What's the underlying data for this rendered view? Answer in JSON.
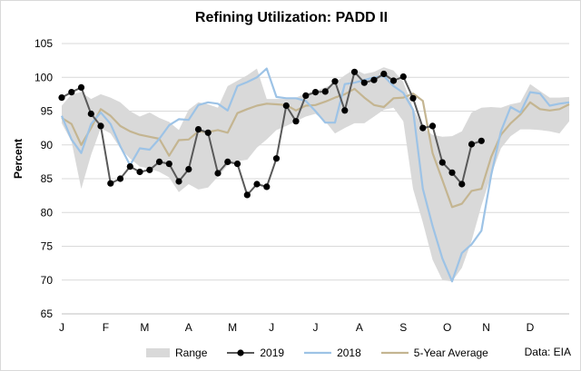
{
  "chart_data": {
    "type": "line",
    "title": "Refining Utilization: PADD II",
    "ylabel": "Percent",
    "xlabel": "",
    "ylim": [
      65,
      105
    ],
    "yticks": [
      65,
      70,
      75,
      80,
      85,
      90,
      95,
      100,
      105
    ],
    "xlim": [
      1,
      53
    ],
    "x_ticks": [
      {
        "label": "J",
        "week": 1
      },
      {
        "label": "F",
        "week": 5.5
      },
      {
        "label": "M",
        "week": 9.5
      },
      {
        "label": "A",
        "week": 14
      },
      {
        "label": "M",
        "week": 18.5
      },
      {
        "label": "J",
        "week": 22.5
      },
      {
        "label": "J",
        "week": 27
      },
      {
        "label": "A",
        "week": 31.5
      },
      {
        "label": "S",
        "week": 36
      },
      {
        "label": "O",
        "week": 40.5
      },
      {
        "label": "N",
        "week": 44.5
      },
      {
        "label": "D",
        "week": 49
      }
    ],
    "grid": "horizontal",
    "legend_position": "bottom",
    "range": {
      "name": "Range",
      "color": "#d9d9d9",
      "upper": [
        95.8,
        97.5,
        97.8,
        96.8,
        97.5,
        97.0,
        96.3,
        95.0,
        94.2,
        94.8,
        94.0,
        93.4,
        92.2,
        95.2,
        96.3,
        96.0,
        95.5,
        98.7,
        99.5,
        100.3,
        101.3,
        96.8,
        96.8,
        96.8,
        97.0,
        97.6,
        98.0,
        98.5,
        99.2,
        100.3,
        101.2,
        100.5,
        100.8,
        101.5,
        101.0,
        99.3,
        95.5,
        92.5,
        91.5,
        91.2,
        91.3,
        92.0,
        94.8,
        95.5,
        95.6,
        95.5,
        96.0,
        96.3,
        99.0,
        98.0,
        97.0,
        97.0,
        97.1
      ],
      "lower": [
        93.2,
        90.5,
        83.5,
        88.5,
        92.5,
        91.7,
        89.5,
        88.0,
        86.8,
        86.5,
        86.0,
        85.2,
        83.0,
        84.2,
        83.4,
        83.7,
        85.3,
        87.0,
        87.6,
        87.8,
        89.6,
        90.8,
        92.2,
        92.8,
        93.5,
        94.2,
        94.6,
        93.5,
        91.7,
        92.5,
        93.2,
        93.2,
        94.2,
        95.2,
        95.5,
        93.5,
        83.5,
        78.5,
        73.0,
        70.0,
        69.8,
        71.8,
        75.8,
        81.0,
        85.5,
        89.5,
        91.3,
        92.3,
        92.3,
        92.2,
        92.0,
        91.7,
        93.5
      ]
    },
    "series": [
      {
        "name": "2019",
        "color": "#595959",
        "marker": "circle",
        "values": [
          97.0,
          97.8,
          98.5,
          94.6,
          92.8,
          84.3,
          85.0,
          86.8,
          86.0,
          86.3,
          87.5,
          87.2,
          84.6,
          86.4,
          92.3,
          91.8,
          85.8,
          87.5,
          87.2,
          82.6,
          84.2,
          83.8,
          88.0,
          95.8,
          93.5,
          97.3,
          97.8,
          97.9,
          99.4,
          95.1,
          100.8,
          99.2,
          99.6,
          100.5,
          99.5,
          100.1,
          96.9,
          92.5,
          92.8,
          87.4,
          85.9,
          84.2,
          90.1,
          90.6,
          null,
          null,
          null,
          null,
          null,
          null,
          null,
          null,
          null
        ]
      },
      {
        "name": "2018",
        "color": "#9dc3e6",
        "marker": "none",
        "values": [
          94.3,
          90.8,
          88.8,
          93.1,
          94.8,
          93.1,
          89.8,
          87.0,
          89.5,
          89.3,
          90.9,
          92.9,
          93.8,
          93.7,
          95.9,
          96.3,
          96.1,
          95.1,
          98.7,
          99.3,
          100.0,
          101.3,
          97.1,
          96.9,
          96.9,
          96.5,
          95.0,
          93.3,
          93.3,
          99.0,
          99.2,
          99.6,
          100.0,
          100.2,
          98.7,
          97.7,
          95.2,
          83.5,
          78.0,
          73.2,
          69.8,
          74.0,
          75.3,
          77.3,
          85.5,
          92.0,
          95.6,
          94.8,
          97.8,
          97.6,
          95.8,
          96.1,
          96.3
        ]
      },
      {
        "name": "5-Year Average",
        "color": "#c4b591",
        "marker": "none",
        "values": [
          94.0,
          93.1,
          90.0,
          92.5,
          95.3,
          94.3,
          92.8,
          92.0,
          91.5,
          91.2,
          90.9,
          88.4,
          90.7,
          90.8,
          92.0,
          91.9,
          92.2,
          91.8,
          94.7,
          95.3,
          95.8,
          96.1,
          96.0,
          95.9,
          95.1,
          95.8,
          95.9,
          96.4,
          97.0,
          97.5,
          98.3,
          97.0,
          95.9,
          95.6,
          96.9,
          97.0,
          97.6,
          96.5,
          88.8,
          84.8,
          80.8,
          81.3,
          83.2,
          83.5,
          88.2,
          91.5,
          93.2,
          94.5,
          96.3,
          95.3,
          95.1,
          95.3,
          96.0
        ]
      }
    ],
    "source": "Data: EIA"
  }
}
